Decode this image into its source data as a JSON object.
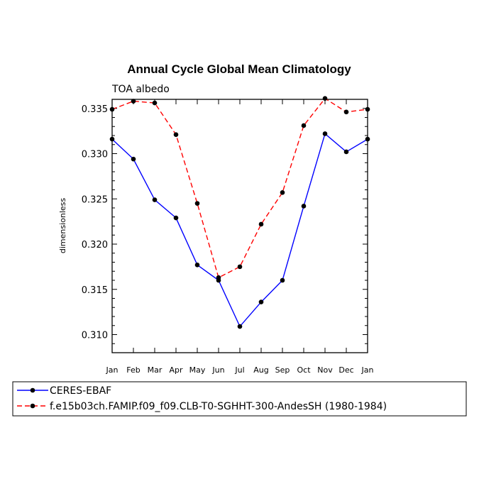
{
  "chart_data": {
    "type": "line",
    "title": "Annual Cycle Global Mean Climatology",
    "subtitle": "TOA albedo",
    "xlabel": "",
    "ylabel": "dimensionless",
    "ylim": [
      0.308,
      0.336
    ],
    "yticks": [
      "0.310",
      "0.315",
      "0.320",
      "0.325",
      "0.330",
      "0.335"
    ],
    "categories": [
      "Jan",
      "Feb",
      "Mar",
      "Apr",
      "May",
      "Jun",
      "Jul",
      "Aug",
      "Sep",
      "Oct",
      "Nov",
      "Dec",
      "Jan"
    ],
    "series": [
      {
        "name": "CERES-EBAF",
        "color": "#0000ff",
        "dash": "solid",
        "values": [
          0.3316,
          0.3294,
          0.3249,
          0.3229,
          0.3177,
          0.316,
          0.3109,
          0.3136,
          0.316,
          0.3242,
          0.3322,
          0.3302,
          0.3316
        ]
      },
      {
        "name": "f.e15b03ch.FAMIP.f09_f09.CLB-T0-SGHHT-300-AndesSH (1980-1984)",
        "color": "#ff0000",
        "dash": "dashed",
        "values": [
          0.3349,
          0.3358,
          0.3356,
          0.3321,
          0.3245,
          0.3163,
          0.3175,
          0.3222,
          0.3257,
          0.3331,
          0.3361,
          0.3346,
          0.3349
        ]
      }
    ]
  }
}
